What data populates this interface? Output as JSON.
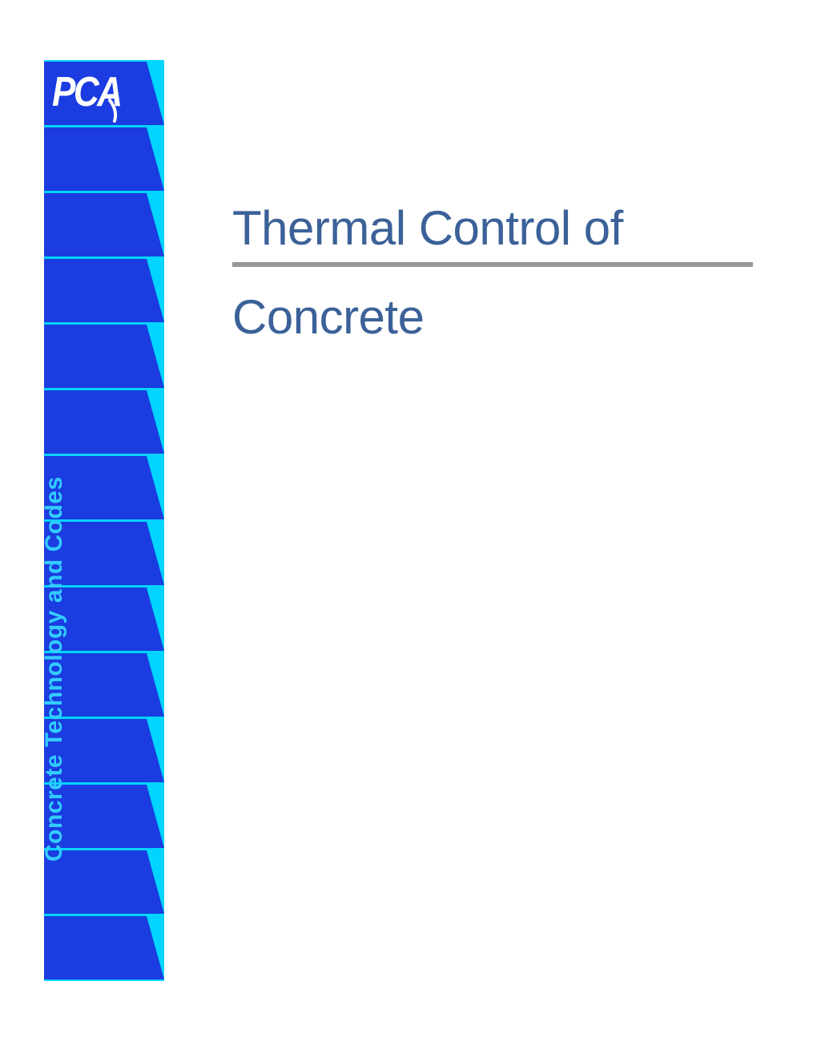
{
  "colors": {
    "sidebar_primary": "#1a3ce0",
    "sidebar_accent": "#00d4ff",
    "sidebar_text": "#33ccff",
    "title_text": "#3b6198",
    "rule": "#989898",
    "logo_text": "#ffffff",
    "background": "#ffffff"
  },
  "sidebar": {
    "logo_text": "PCA",
    "vertical_text": "Concrete Technology and Codes",
    "segment_count": 14,
    "segment_height": 83,
    "segment_width": 150,
    "notch_width": 22,
    "gap": 2
  },
  "title": {
    "line1": "Thermal Control of",
    "line2": "Concrete",
    "font_size": 60,
    "rule_thickness": 6
  }
}
